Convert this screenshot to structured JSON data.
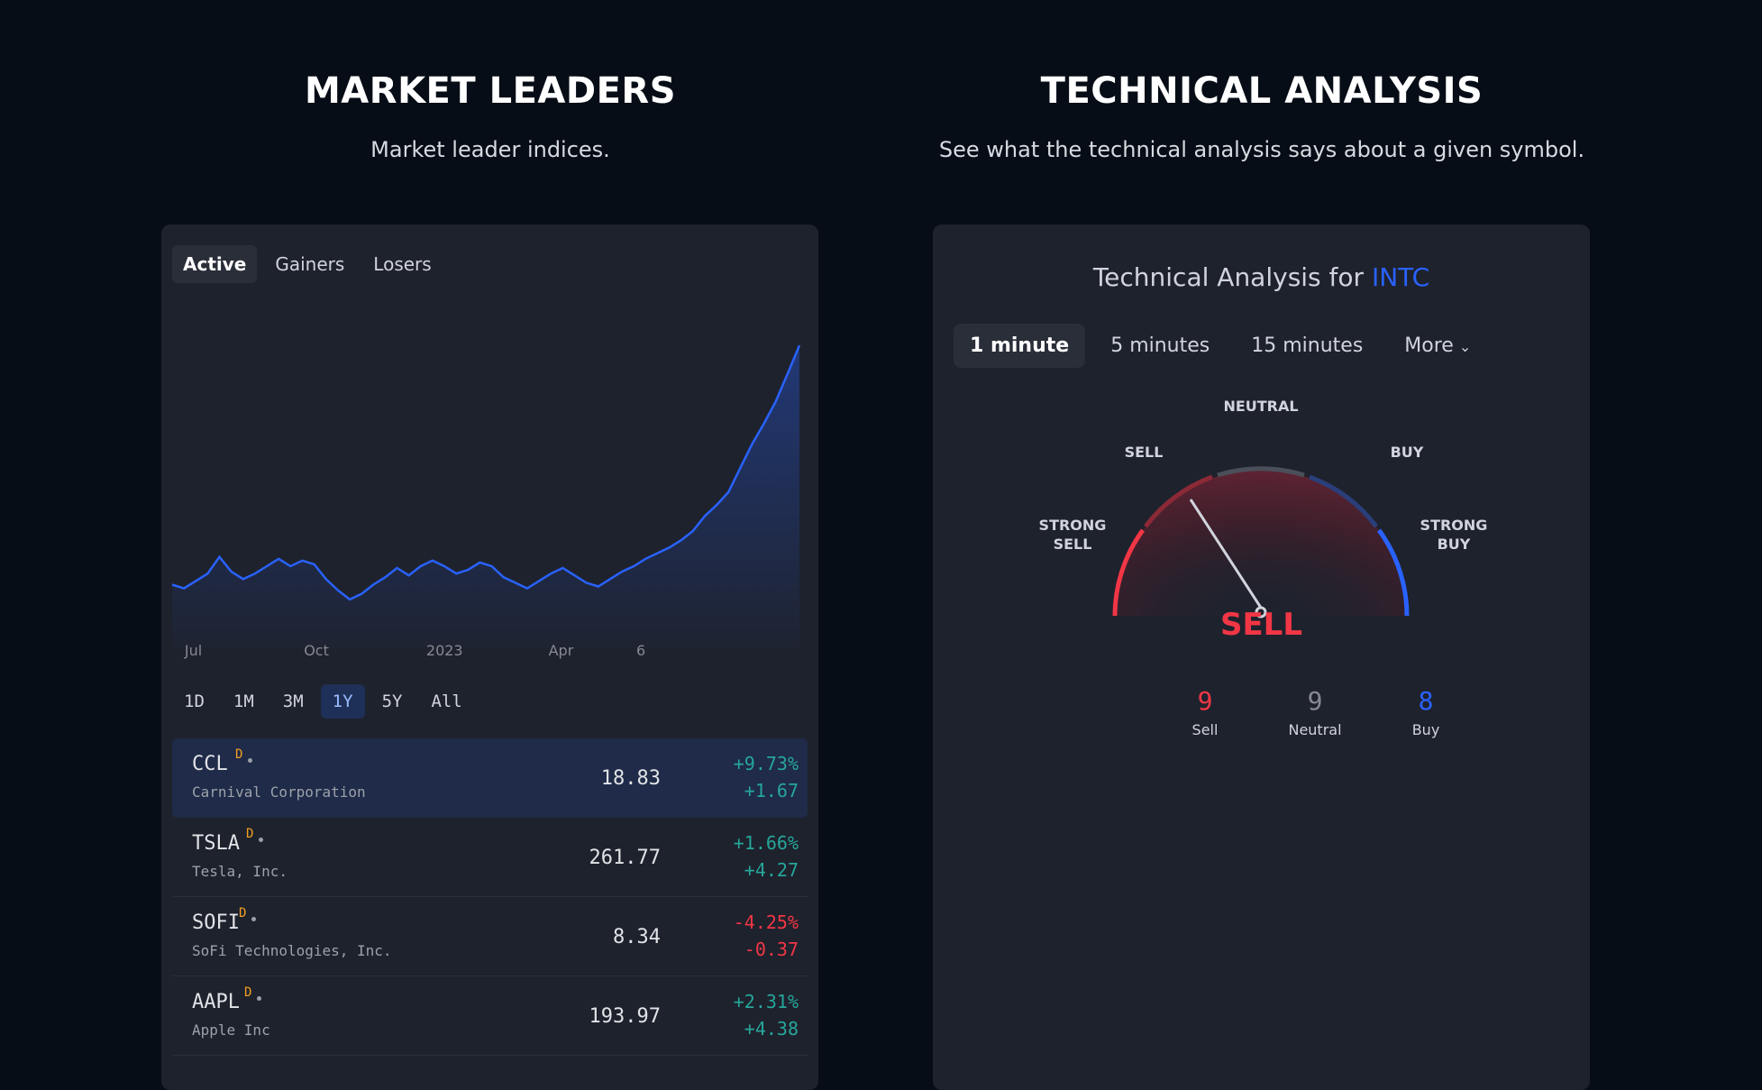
{
  "market_leaders": {
    "title": "MARKET LEADERS",
    "subtitle": "Market leader indices.",
    "tabs": [
      "Active",
      "Gainers",
      "Losers"
    ],
    "active_tab": "Active",
    "ranges": [
      "1D",
      "1M",
      "3M",
      "1Y",
      "5Y",
      "All"
    ],
    "active_range": "1Y",
    "stocks": [
      {
        "symbol": "CCL",
        "badge": "D",
        "name": "Carnival Corporation",
        "price": "18.83",
        "change_pct": "+9.73%",
        "change_abs": "+1.67",
        "direction": "up"
      },
      {
        "symbol": "TSLA",
        "badge": "D",
        "name": "Tesla, Inc.",
        "price": "261.77",
        "change_pct": "+1.66%",
        "change_abs": "+4.27",
        "direction": "up"
      },
      {
        "symbol": "SOFI",
        "badge": "D",
        "name": "SoFi Technologies, Inc.",
        "price": "8.34",
        "change_pct": "-4.25%",
        "change_abs": "-0.37",
        "direction": "down"
      },
      {
        "symbol": "AAPL",
        "badge": "D",
        "name": "Apple Inc",
        "price": "193.97",
        "change_pct": "+2.31%",
        "change_abs": "+4.38",
        "direction": "up"
      }
    ]
  },
  "chart_data": {
    "type": "area",
    "x_ticks": [
      "Jul",
      "Oct",
      "2023",
      "Apr",
      "6"
    ],
    "series": [
      {
        "color": "#2962ff",
        "values": [
          5.9,
          5.7,
          6.1,
          6.5,
          7.4,
          6.6,
          6.2,
          6.5,
          6.9,
          7.3,
          6.9,
          7.2,
          7.0,
          6.2,
          5.6,
          5.1,
          5.4,
          5.9,
          6.3,
          6.8,
          6.4,
          6.9,
          7.2,
          6.9,
          6.5,
          6.7,
          7.1,
          6.9,
          6.3,
          6.0,
          5.7,
          6.1,
          6.5,
          6.8,
          6.4,
          6.0,
          5.8,
          6.2,
          6.6,
          6.9,
          7.3,
          7.6,
          7.9,
          8.3,
          8.8,
          9.6,
          10.2,
          10.9,
          12.2,
          13.5,
          14.6,
          15.8,
          17.3,
          18.83
        ]
      }
    ]
  },
  "technical_analysis": {
    "title": "TECHNICAL ANALYSIS",
    "subtitle": "See what the technical analysis says about a given symbol.",
    "heading_prefix": "Technical Analysis for",
    "symbol": "INTC",
    "intervals": [
      "1 minute",
      "5 minutes",
      "15 minutes"
    ],
    "active_interval": "1 minute",
    "more_label": "More",
    "gauge_labels": {
      "strong_sell": "STRONG SELL",
      "sell": "SELL",
      "neutral": "NEUTRAL",
      "buy": "BUY",
      "strong_buy": "STRONG BUY"
    },
    "verdict": "SELL",
    "counts": [
      {
        "value": "9",
        "label": "Sell",
        "color": "#f23645"
      },
      {
        "value": "9",
        "label": "Neutral",
        "color": "#868993"
      },
      {
        "value": "8",
        "label": "Buy",
        "color": "#2962ff"
      }
    ]
  }
}
